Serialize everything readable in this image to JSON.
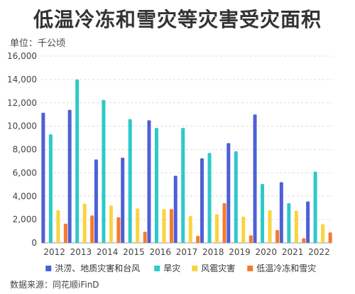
{
  "title": "低温冷冻和雪灾等灾害受灾面积",
  "unit_label": "单位：千公顷",
  "source": "数据来源：同花顺iFinD",
  "chart_data": {
    "type": "bar",
    "categories": [
      "2012",
      "2013",
      "2014",
      "2015",
      "2016",
      "2017",
      "2018",
      "2019",
      "2020",
      "2021",
      "2022"
    ],
    "series": [
      {
        "name": "洪涝、地质灾害和台风",
        "color": "#4e5fd6",
        "values": [
          11150,
          11400,
          7150,
          7300,
          10500,
          5750,
          7250,
          8550,
          11000,
          5200,
          3550
        ]
      },
      {
        "name": "旱灾",
        "color": "#2ec9c9",
        "values": [
          9300,
          14000,
          12250,
          10600,
          9850,
          9850,
          7700,
          7850,
          5050,
          3400,
          6100
        ]
      },
      {
        "name": "风雹灾害",
        "color": "#fad33f",
        "values": [
          2800,
          3350,
          3200,
          2950,
          2900,
          2300,
          2450,
          2250,
          2800,
          2750,
          1600
        ]
      },
      {
        "name": "低温冷冻和雪灾",
        "color": "#f57b2e",
        "values": [
          1650,
          2350,
          2200,
          950,
          2900,
          600,
          3400,
          650,
          1100,
          400,
          900
        ]
      }
    ],
    "ylim": [
      0,
      16000
    ],
    "yticks": [
      0,
      2000,
      4000,
      6000,
      8000,
      10000,
      12000,
      14000,
      16000
    ],
    "ytick_labels": [
      "0",
      "2,000",
      "4,000",
      "6,000",
      "8,000",
      "10,000",
      "12,000",
      "14,000",
      "16,000"
    ],
    "grid": true,
    "legend_position": "bottom"
  }
}
